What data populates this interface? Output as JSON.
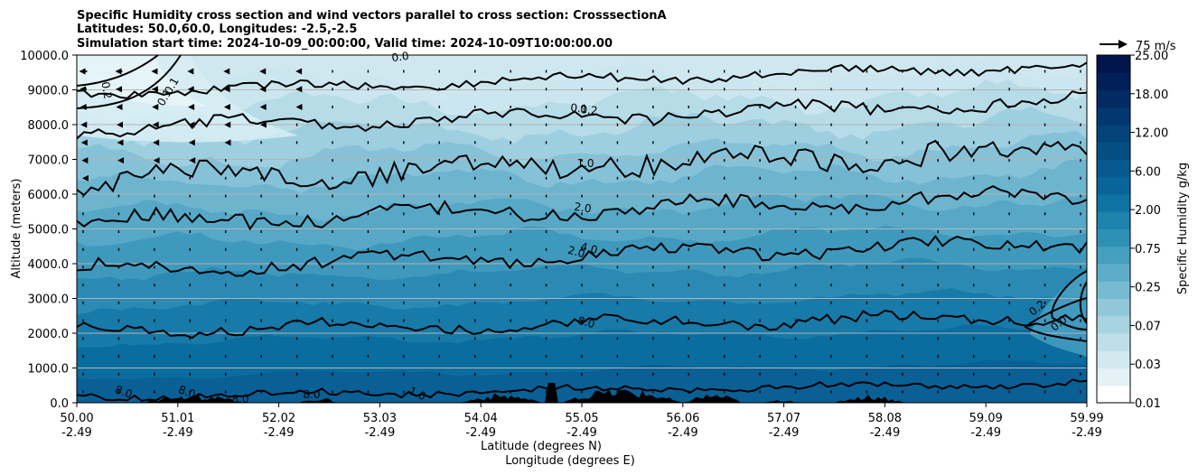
{
  "chart_data": {
    "type": "heatmap",
    "title_lines": [
      "Specific Humidity cross section and wind vectors parallel to cross section: CrosssectionA",
      "Latitudes: 50.0,60.0, Longitudes: -2.5,-2.5",
      "Simulation start time: 2024-10-09_00:00:00, Valid time: 2024-10-09T10:00:00.00"
    ],
    "ylabel": "Altitude (meters)",
    "xlabel_lines": [
      "Latitude (degrees N)",
      "Longitude (degrees E)"
    ],
    "ylim": [
      0,
      10000
    ],
    "y_ticks": [
      "0.0",
      "1000.0",
      "2000.0",
      "3000.0",
      "4000.0",
      "5000.0",
      "6000.0",
      "7000.0",
      "8000.0",
      "9000.0",
      "10000.0"
    ],
    "x_ticks_lat": [
      "50.00",
      "51.01",
      "52.02",
      "53.03",
      "54.04",
      "55.05",
      "56.06",
      "57.07",
      "58.08",
      "59.09",
      "59.99"
    ],
    "x_ticks_lon": [
      "-2.49",
      "-2.49",
      "-2.49",
      "-2.49",
      "-2.49",
      "-2.49",
      "-2.49",
      "-2.49",
      "-2.49",
      "-2.49",
      "-2.49"
    ],
    "grid": "horizontal",
    "colorbar": {
      "label": "Specific Humidity g/kg",
      "tick_labels": [
        "0.01",
        "0.03",
        "0.07",
        "0.25",
        "0.75",
        "2.00",
        "6.00",
        "12.00",
        "18.00",
        "25.00"
      ],
      "colors": [
        "#ffffff",
        "#e4f1f5",
        "#d2e9f0",
        "#bedfea",
        "#a8d4e2",
        "#90c8da",
        "#77bbd1",
        "#5eadc8",
        "#459fbf",
        "#2f90b6",
        "#1d82ac",
        "#0e73a3",
        "#08659a",
        "#065a8f",
        "#054e84",
        "#04437a",
        "#03376f",
        "#022b64",
        "#011f58",
        "#01144c"
      ]
    },
    "quiver_key": "75 m/s",
    "contours": [
      {
        "level": "0.0",
        "color": "#000000"
      },
      {
        "level": "0.1",
        "color": "#000000"
      },
      {
        "level": "0.2",
        "color": "#000000"
      },
      {
        "level": "1.0",
        "color": "#000000"
      },
      {
        "level": "2.0",
        "color": "#000000"
      },
      {
        "level": "4.0",
        "color": "#000000"
      },
      {
        "level": "8.0",
        "color": "#000000"
      }
    ],
    "contour_labels": [
      "0.0",
      "0.2",
      "0.1",
      "0.1",
      "0.1",
      "0.2",
      "1.0",
      "2.0",
      "2.0",
      "4.0",
      "8.0",
      "8.0",
      "8.0",
      "8.0",
      "8.0",
      "1.0",
      "0.2",
      "0.0"
    ],
    "terrain_color": "#000000"
  }
}
